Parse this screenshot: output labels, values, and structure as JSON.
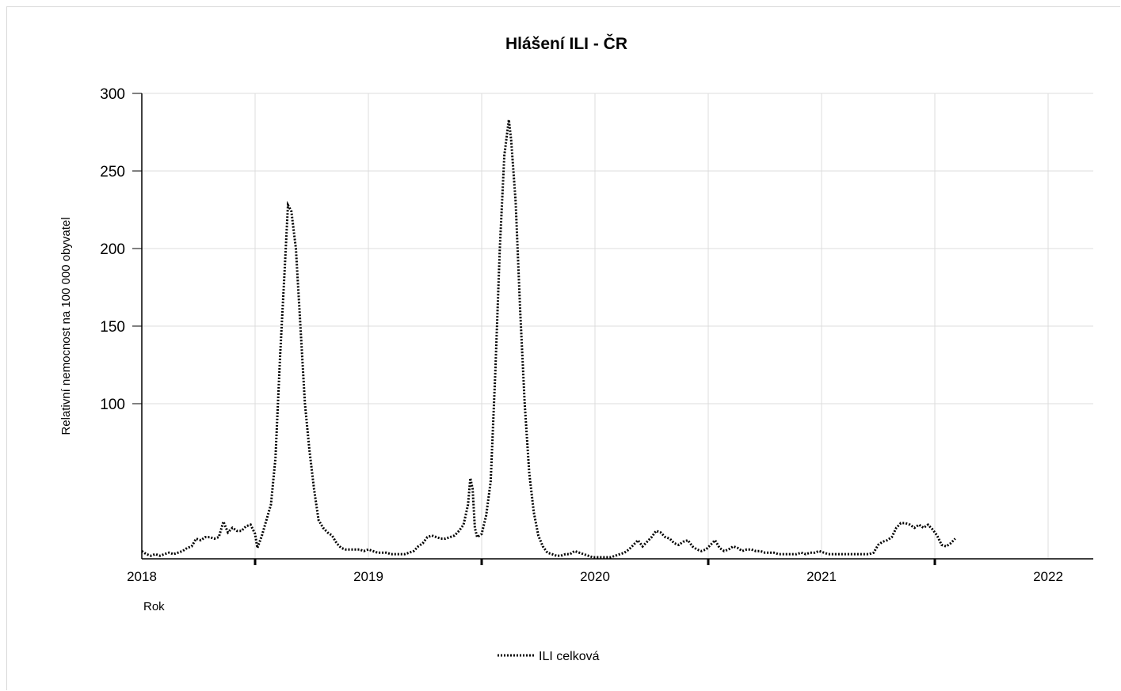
{
  "chart_data": {
    "type": "line",
    "title": "Hlášení ILI - ČR",
    "xlabel": "Rok",
    "ylabel": "Relativní nemocnost na 100 000 obyvatel",
    "xlim": [
      2018,
      2022
    ],
    "ylim": [
      0,
      300
    ],
    "x_ticks": [
      "2018",
      "2019",
      "2020",
      "2021",
      "2022"
    ],
    "y_ticks": [
      300,
      250,
      200,
      150,
      100
    ],
    "grid": true,
    "legend_position": "bottom",
    "series": [
      {
        "name": "ILI celková",
        "color": "#000000",
        "style": "dotted",
        "points": [
          [
            2018.0,
            5
          ],
          [
            2018.02,
            3
          ],
          [
            2018.04,
            2
          ],
          [
            2018.06,
            3
          ],
          [
            2018.08,
            2
          ],
          [
            2018.1,
            3
          ],
          [
            2018.12,
            4
          ],
          [
            2018.14,
            3
          ],
          [
            2018.16,
            4
          ],
          [
            2018.18,
            5
          ],
          [
            2018.2,
            7
          ],
          [
            2018.22,
            8
          ],
          [
            2018.24,
            13
          ],
          [
            2018.26,
            12
          ],
          [
            2018.28,
            14
          ],
          [
            2018.3,
            14
          ],
          [
            2018.32,
            13
          ],
          [
            2018.34,
            14
          ],
          [
            2018.36,
            24
          ],
          [
            2018.38,
            17
          ],
          [
            2018.4,
            20
          ],
          [
            2018.42,
            18
          ],
          [
            2018.44,
            18
          ],
          [
            2018.46,
            21
          ],
          [
            2018.48,
            22
          ],
          [
            2018.5,
            16
          ],
          [
            2018.51,
            7
          ],
          [
            2018.53,
            15
          ],
          [
            2018.55,
            25
          ],
          [
            2018.57,
            35
          ],
          [
            2018.59,
            65
          ],
          [
            2018.61,
            130
          ],
          [
            2018.63,
            185
          ],
          [
            2018.645,
            228
          ],
          [
            2018.66,
            224
          ],
          [
            2018.68,
            200
          ],
          [
            2018.7,
            150
          ],
          [
            2018.72,
            100
          ],
          [
            2018.74,
            70
          ],
          [
            2018.76,
            45
          ],
          [
            2018.78,
            25
          ],
          [
            2018.8,
            20
          ],
          [
            2018.82,
            17
          ],
          [
            2018.84,
            15
          ],
          [
            2018.86,
            10
          ],
          [
            2018.88,
            7
          ],
          [
            2018.9,
            6
          ],
          [
            2018.92,
            6
          ],
          [
            2018.94,
            6
          ],
          [
            2018.96,
            6
          ],
          [
            2018.98,
            5
          ],
          [
            2019.0,
            6
          ],
          [
            2019.02,
            5
          ],
          [
            2019.04,
            4
          ],
          [
            2019.06,
            4
          ],
          [
            2019.08,
            4
          ],
          [
            2019.1,
            3
          ],
          [
            2019.12,
            3
          ],
          [
            2019.14,
            3
          ],
          [
            2019.16,
            3
          ],
          [
            2019.18,
            4
          ],
          [
            2019.2,
            5
          ],
          [
            2019.22,
            8
          ],
          [
            2019.24,
            10
          ],
          [
            2019.26,
            14
          ],
          [
            2019.28,
            15
          ],
          [
            2019.3,
            14
          ],
          [
            2019.32,
            13
          ],
          [
            2019.34,
            13
          ],
          [
            2019.36,
            14
          ],
          [
            2019.38,
            15
          ],
          [
            2019.4,
            18
          ],
          [
            2019.42,
            22
          ],
          [
            2019.44,
            35
          ],
          [
            2019.45,
            52
          ],
          [
            2019.46,
            45
          ],
          [
            2019.47,
            20
          ],
          [
            2019.48,
            14
          ],
          [
            2019.5,
            16
          ],
          [
            2019.52,
            28
          ],
          [
            2019.54,
            50
          ],
          [
            2019.56,
            120
          ],
          [
            2019.58,
            200
          ],
          [
            2019.6,
            260
          ],
          [
            2019.62,
            283
          ],
          [
            2019.63,
            270
          ],
          [
            2019.65,
            230
          ],
          [
            2019.67,
            160
          ],
          [
            2019.69,
            100
          ],
          [
            2019.71,
            55
          ],
          [
            2019.73,
            30
          ],
          [
            2019.75,
            15
          ],
          [
            2019.77,
            8
          ],
          [
            2019.79,
            4
          ],
          [
            2019.81,
            3
          ],
          [
            2019.83,
            2
          ],
          [
            2019.85,
            2
          ],
          [
            2019.87,
            3
          ],
          [
            2019.89,
            3
          ],
          [
            2019.91,
            5
          ],
          [
            2019.93,
            4
          ],
          [
            2019.95,
            3
          ],
          [
            2019.97,
            2
          ],
          [
            2019.99,
            1
          ],
          [
            2020.01,
            1
          ],
          [
            2020.03,
            1
          ],
          [
            2020.05,
            1
          ],
          [
            2020.07,
            1
          ],
          [
            2020.09,
            2
          ],
          [
            2020.11,
            3
          ],
          [
            2020.13,
            4
          ],
          [
            2020.15,
            6
          ],
          [
            2020.17,
            9
          ],
          [
            2020.19,
            12
          ],
          [
            2020.21,
            8
          ],
          [
            2020.23,
            11
          ],
          [
            2020.25,
            14
          ],
          [
            2020.27,
            18
          ],
          [
            2020.29,
            17
          ],
          [
            2020.31,
            14
          ],
          [
            2020.33,
            13
          ],
          [
            2020.35,
            10
          ],
          [
            2020.37,
            9
          ],
          [
            2020.39,
            11
          ],
          [
            2020.41,
            12
          ],
          [
            2020.43,
            8
          ],
          [
            2020.45,
            6
          ],
          [
            2020.47,
            5
          ],
          [
            2020.49,
            6
          ],
          [
            2020.51,
            9
          ],
          [
            2020.53,
            12
          ],
          [
            2020.55,
            7
          ],
          [
            2020.57,
            5
          ],
          [
            2020.59,
            6
          ],
          [
            2020.61,
            8
          ],
          [
            2020.63,
            7
          ],
          [
            2020.65,
            5
          ],
          [
            2020.67,
            6
          ],
          [
            2020.69,
            6
          ],
          [
            2020.71,
            5
          ],
          [
            2020.73,
            5
          ],
          [
            2020.75,
            4
          ],
          [
            2020.77,
            4
          ],
          [
            2020.79,
            4
          ],
          [
            2020.81,
            3
          ],
          [
            2020.83,
            3
          ],
          [
            2020.85,
            3
          ],
          [
            2020.87,
            3
          ],
          [
            2020.89,
            3
          ],
          [
            2020.91,
            4
          ],
          [
            2020.93,
            3
          ],
          [
            2020.95,
            4
          ],
          [
            2020.97,
            4
          ],
          [
            2020.99,
            5
          ],
          [
            2021.01,
            4
          ],
          [
            2021.03,
            3
          ],
          [
            2021.05,
            3
          ],
          [
            2021.07,
            3
          ],
          [
            2021.09,
            3
          ],
          [
            2021.11,
            3
          ],
          [
            2021.13,
            3
          ],
          [
            2021.15,
            3
          ],
          [
            2021.17,
            3
          ],
          [
            2021.19,
            3
          ],
          [
            2021.21,
            3
          ],
          [
            2021.23,
            4
          ],
          [
            2021.25,
            9
          ],
          [
            2021.27,
            11
          ],
          [
            2021.29,
            12
          ],
          [
            2021.31,
            14
          ],
          [
            2021.33,
            20
          ],
          [
            2021.35,
            23
          ],
          [
            2021.37,
            23
          ],
          [
            2021.39,
            22
          ],
          [
            2021.41,
            20
          ],
          [
            2021.43,
            22
          ],
          [
            2021.45,
            20
          ],
          [
            2021.47,
            22
          ],
          [
            2021.49,
            19
          ],
          [
            2021.51,
            15
          ],
          [
            2021.53,
            9
          ],
          [
            2021.55,
            8
          ],
          [
            2021.57,
            10
          ],
          [
            2021.59,
            13
          ]
        ]
      }
    ]
  }
}
